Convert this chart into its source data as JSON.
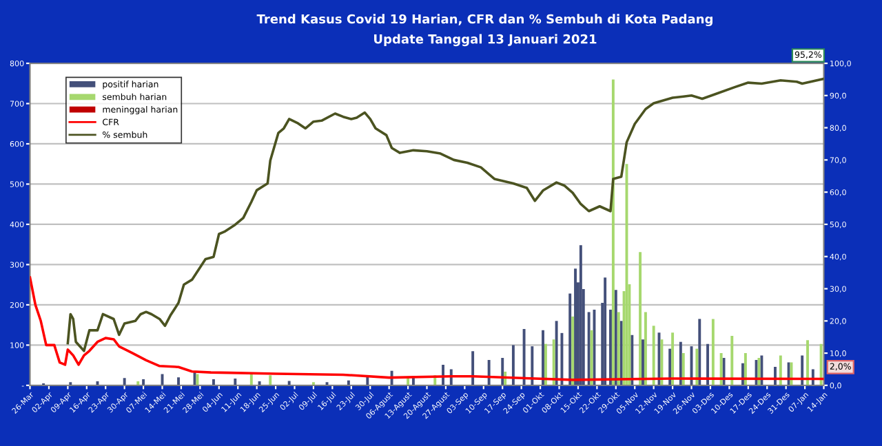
{
  "chart_data": {
    "type": "line",
    "title": "Trend Kasus Covid 19 Harian, CFR dan % Sembuh di Kota Padang",
    "subtitle": "Update Tanggal 13 Januari 2021",
    "series": [
      {
        "name": "positif harian",
        "type": "bar",
        "axis": "y",
        "color": "#44507a",
        "x": [
          "2020-03-31",
          "2020-04-10",
          "2020-04-20",
          "2020-04-30",
          "2020-05-07",
          "2020-05-14",
          "2020-05-20",
          "2020-05-26",
          "2020-06-02",
          "2020-06-10",
          "2020-06-19",
          "2020-06-30",
          "2020-07-14",
          "2020-07-22",
          "2020-07-29",
          "2020-08-07",
          "2020-08-15",
          "2020-08-26",
          "2020-08-29",
          "2020-09-06",
          "2020-09-12",
          "2020-09-17",
          "2020-09-21",
          "2020-09-25",
          "2020-09-28",
          "2020-10-02",
          "2020-10-07",
          "2020-10-09",
          "2020-10-12",
          "2020-10-14",
          "2020-10-15",
          "2020-10-16",
          "2020-10-17",
          "2020-10-19",
          "2020-10-21",
          "2020-10-24",
          "2020-10-25",
          "2020-10-27",
          "2020-10-29",
          "2020-10-31",
          "2020-11-04",
          "2020-11-08",
          "2020-11-14",
          "2020-11-18",
          "2020-11-22",
          "2020-11-26",
          "2020-11-29",
          "2020-12-02",
          "2020-12-08",
          "2020-12-15",
          "2020-12-20",
          "2020-12-22",
          "2020-12-27",
          "2021-01-01",
          "2021-01-06",
          "2021-01-10"
        ],
        "values": [
          5,
          8,
          10,
          18,
          15,
          28,
          20,
          34,
          15,
          17,
          10,
          11,
          8,
          12,
          23,
          36,
          23,
          51,
          40,
          85,
          63,
          68,
          100,
          140,
          97,
          137,
          160,
          130,
          228,
          290,
          256,
          348,
          239,
          182,
          188,
          205,
          268,
          188,
          237,
          160,
          125,
          114,
          131,
          91,
          108,
          97,
          165,
          103,
          68,
          55,
          63,
          74,
          46,
          57,
          74,
          40
        ]
      },
      {
        "name": "sembuh harian",
        "type": "bar",
        "axis": "y",
        "color": "#a6d86e",
        "x": [
          "2020-05-05",
          "2020-05-27",
          "2020-06-16",
          "2020-06-23",
          "2020-07-09",
          "2020-08-13",
          "2020-08-23",
          "2020-09-18",
          "2020-10-03",
          "2020-10-06",
          "2020-10-13",
          "2020-10-20",
          "2020-10-28",
          "2020-10-30",
          "2020-11-01",
          "2020-11-02",
          "2020-11-03",
          "2020-11-07",
          "2020-11-09",
          "2020-11-12",
          "2020-11-15",
          "2020-11-19",
          "2020-11-23",
          "2020-11-28",
          "2020-12-04",
          "2020-12-07",
          "2020-12-11",
          "2020-12-16",
          "2020-12-21",
          "2020-12-29",
          "2021-01-02",
          "2021-01-08",
          "2021-01-13"
        ],
        "values": [
          10,
          28,
          30,
          25,
          8,
          20,
          25,
          34,
          103,
          114,
          171,
          137,
          760,
          182,
          234,
          550,
          251,
          331,
          182,
          148,
          114,
          131,
          80,
          91,
          165,
          80,
          123,
          80,
          68,
          74,
          57,
          112,
          103
        ]
      },
      {
        "name": "meninggal harian",
        "type": "bar",
        "axis": "y",
        "color": "#c00000"
      },
      {
        "name": "CFR",
        "axis": "y2",
        "color": "#ff0000",
        "x": [
          "2020-03-26",
          "2020-03-28",
          "2020-03-30",
          "2020-04-01",
          "2020-04-04",
          "2020-04-06",
          "2020-04-08",
          "2020-04-09",
          "2020-04-11",
          "2020-04-13",
          "2020-04-15",
          "2020-04-17",
          "2020-04-20",
          "2020-04-23",
          "2020-04-26",
          "2020-04-28",
          "2020-05-03",
          "2020-05-08",
          "2020-05-13",
          "2020-05-20",
          "2020-05-25",
          "2020-06-01",
          "2020-06-08",
          "2020-06-25",
          "2020-07-20",
          "2020-08-06",
          "2020-08-29",
          "2020-09-06",
          "2020-10-13",
          "2020-11-19",
          "2021-01-14"
        ],
        "values": [
          33.5,
          25.0,
          20.0,
          12.5,
          12.5,
          7.1,
          6.4,
          11.1,
          9.3,
          6.4,
          9.3,
          10.7,
          13.5,
          14.7,
          14.3,
          12.1,
          10.0,
          7.8,
          6.0,
          5.7,
          4.3,
          4.0,
          3.9,
          3.6,
          3.3,
          2.4,
          2.8,
          2.8,
          1.7,
          2.1,
          2.0
        ]
      },
      {
        "name": "% sembuh",
        "axis": "y2",
        "color": "#4b5320",
        "x": [
          "2020-04-09",
          "2020-04-10",
          "2020-04-11",
          "2020-04-12",
          "2020-04-15",
          "2020-04-17",
          "2020-04-20",
          "2020-04-22",
          "2020-04-26",
          "2020-04-28",
          "2020-04-30",
          "2020-05-04",
          "2020-05-06",
          "2020-05-08",
          "2020-05-10",
          "2020-05-13",
          "2020-05-15",
          "2020-05-17",
          "2020-05-20",
          "2020-05-22",
          "2020-05-25",
          "2020-05-30",
          "2020-06-02",
          "2020-06-04",
          "2020-06-06",
          "2020-06-10",
          "2020-06-13",
          "2020-06-16",
          "2020-06-18",
          "2020-06-22",
          "2020-06-23",
          "2020-06-26",
          "2020-06-28",
          "2020-06-30",
          "2020-07-03",
          "2020-07-06",
          "2020-07-09",
          "2020-07-12",
          "2020-07-17",
          "2020-07-20",
          "2020-07-23",
          "2020-07-25",
          "2020-07-28",
          "2020-07-30",
          "2020-08-01",
          "2020-08-05",
          "2020-08-07",
          "2020-08-10",
          "2020-08-15",
          "2020-08-20",
          "2020-08-25",
          "2020-08-30",
          "2020-09-04",
          "2020-09-09",
          "2020-09-14",
          "2020-09-21",
          "2020-09-26",
          "2020-09-29",
          "2020-10-02",
          "2020-10-07",
          "2020-10-10",
          "2020-10-13",
          "2020-10-16",
          "2020-10-19",
          "2020-10-23",
          "2020-10-27",
          "2020-10-28",
          "2020-10-31",
          "2020-11-02",
          "2020-11-05",
          "2020-11-09",
          "2020-11-12",
          "2020-11-19",
          "2020-11-23",
          "2020-11-26",
          "2020-11-30",
          "2020-12-05",
          "2020-12-12",
          "2020-12-17",
          "2020-12-22",
          "2020-12-29",
          "2021-01-04",
          "2021-01-06",
          "2021-01-14"
        ],
        "values": [
          13.1,
          22.1,
          20.6,
          13.5,
          10.7,
          17.1,
          17.1,
          22.1,
          20.6,
          15.7,
          19.2,
          20.0,
          22.1,
          22.8,
          22.1,
          20.6,
          18.5,
          21.7,
          25.6,
          31.3,
          32.8,
          39.2,
          39.9,
          47.0,
          47.7,
          49.9,
          52.0,
          57.0,
          60.6,
          62.7,
          69.8,
          78.4,
          79.8,
          82.7,
          81.5,
          79.8,
          81.9,
          82.2,
          84.4,
          83.4,
          82.7,
          83.1,
          84.7,
          82.7,
          79.8,
          77.7,
          73.7,
          72.2,
          73.0,
          72.7,
          72.0,
          70.0,
          69.1,
          67.7,
          64.1,
          62.7,
          61.3,
          57.3,
          60.5,
          63.0,
          62.0,
          59.8,
          56.3,
          54.1,
          55.6,
          54.1,
          64.1,
          64.8,
          75.5,
          81.2,
          85.8,
          87.6,
          89.3,
          89.7,
          90.0,
          89.0,
          90.5,
          92.6,
          94.0,
          93.7,
          94.7,
          94.3,
          93.7,
          95.2
        ]
      }
    ],
    "xlim": [
      "2020-03-26",
      "2021-01-14"
    ],
    "xticks": [
      {
        "value": "2020-03-26",
        "label": "26-Mar"
      },
      {
        "value": "2020-04-02",
        "label": "02-Apr"
      },
      {
        "value": "2020-04-09",
        "label": "09-Apr"
      },
      {
        "value": "2020-04-16",
        "label": "16-Apr"
      },
      {
        "value": "2020-04-23",
        "label": "23-Apr"
      },
      {
        "value": "2020-04-30",
        "label": "30-Apr"
      },
      {
        "value": "2020-05-07",
        "label": "07-Mei"
      },
      {
        "value": "2020-05-14",
        "label": "14-Mei"
      },
      {
        "value": "2020-05-21",
        "label": "21-Mei"
      },
      {
        "value": "2020-05-28",
        "label": "28-Mei"
      },
      {
        "value": "2020-06-04",
        "label": "04-Jun"
      },
      {
        "value": "2020-06-11",
        "label": "11-Jun"
      },
      {
        "value": "2020-06-18",
        "label": "18-Jun"
      },
      {
        "value": "2020-06-25",
        "label": "25-Jun"
      },
      {
        "value": "2020-07-02",
        "label": "02-Jul"
      },
      {
        "value": "2020-07-09",
        "label": "09-Jul"
      },
      {
        "value": "2020-07-16",
        "label": "16-Jul"
      },
      {
        "value": "2020-07-23",
        "label": "23-Jul"
      },
      {
        "value": "2020-07-30",
        "label": "30-Jul"
      },
      {
        "value": "2020-08-06",
        "label": "06-Agust"
      },
      {
        "value": "2020-08-13",
        "label": "13-Agust"
      },
      {
        "value": "2020-08-20",
        "label": "20-Agust"
      },
      {
        "value": "2020-08-27",
        "label": "27-Agust"
      },
      {
        "value": "2020-09-03",
        "label": "03-Sep"
      },
      {
        "value": "2020-09-10",
        "label": "10-Sep"
      },
      {
        "value": "2020-09-17",
        "label": "17-Sep"
      },
      {
        "value": "2020-09-24",
        "label": "24-Sep"
      },
      {
        "value": "2020-10-01",
        "label": "01-Okt"
      },
      {
        "value": "2020-10-08",
        "label": "08-Okt"
      },
      {
        "value": "2020-10-15",
        "label": "15-Okt"
      },
      {
        "value": "2020-10-22",
        "label": "22-Okt"
      },
      {
        "value": "2020-10-29",
        "label": "29-Okt"
      },
      {
        "value": "2020-11-05",
        "label": "05-Nov"
      },
      {
        "value": "2020-11-12",
        "label": "12-Nov"
      },
      {
        "value": "2020-11-19",
        "label": "19-Nov"
      },
      {
        "value": "2020-11-26",
        "label": "26-Nov"
      },
      {
        "value": "2020-12-03",
        "label": "03-Des"
      },
      {
        "value": "2020-12-10",
        "label": "10-Des"
      },
      {
        "value": "2020-12-17",
        "label": "17-Des"
      },
      {
        "value": "2020-12-24",
        "label": "24-Des"
      },
      {
        "value": "2020-12-31",
        "label": "31-Des"
      },
      {
        "value": "2021-01-07",
        "label": "07-Jan"
      },
      {
        "value": "2021-01-14",
        "label": "14-Jan"
      }
    ],
    "ylim": [
      0,
      800
    ],
    "yticks": [
      {
        "value": 0,
        "label": "-"
      },
      100,
      200,
      300,
      400,
      500,
      600,
      700,
      800
    ],
    "y2lim": [
      0,
      100
    ],
    "y2ticks": [
      {
        "value": 0,
        "label": "0,0"
      },
      {
        "value": 10,
        "label": "10,0"
      },
      {
        "value": 20,
        "label": "20,0"
      },
      {
        "value": 30,
        "label": "30,0"
      },
      {
        "value": 40,
        "label": "40,0"
      },
      {
        "value": 50,
        "label": "50,0"
      },
      {
        "value": 60,
        "label": "60,0"
      },
      {
        "value": 70,
        "label": "70,0"
      },
      {
        "value": 80,
        "label": "80,0"
      },
      {
        "value": 90,
        "label": "90,0"
      },
      {
        "value": 100,
        "label": "100,0"
      }
    ],
    "annotations": [
      "95,2%",
      {
        "text": "2,0%",
        "x": "2021-01-14",
        "y": 2.0
      }
    ],
    "grid": "y",
    "legend": "top left",
    "marker": "none",
    "line_style": "solid"
  }
}
